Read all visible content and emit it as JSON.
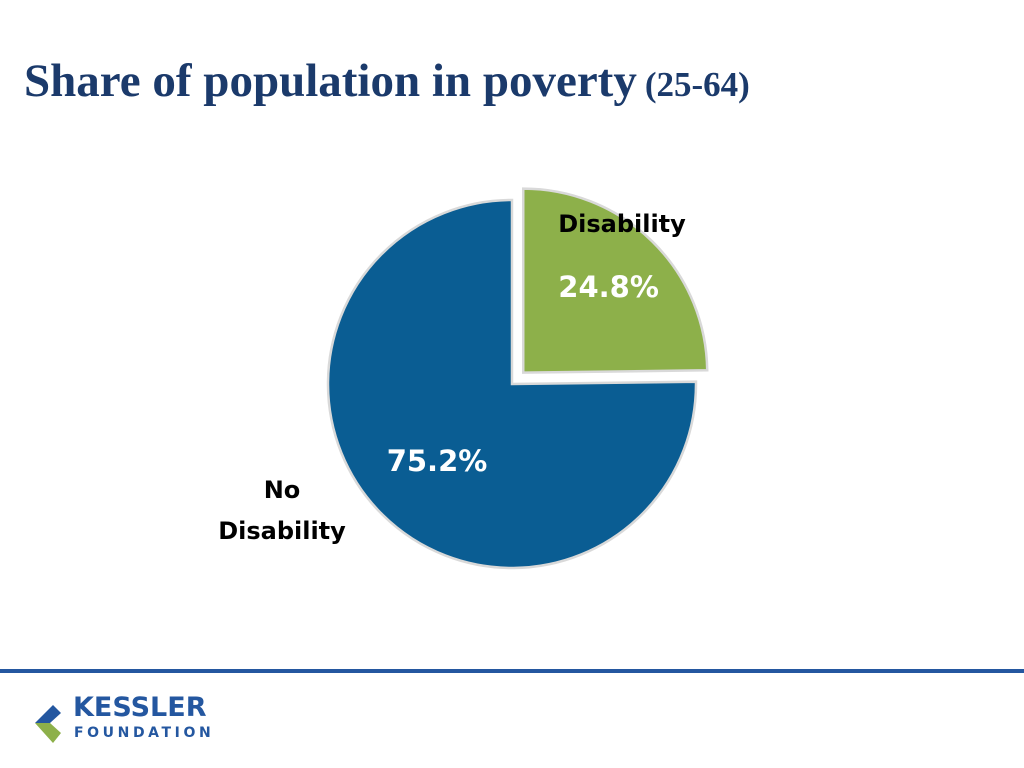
{
  "title": {
    "main": "Share of population in poverty",
    "sub": "(25-64)"
  },
  "chart_data": {
    "type": "pie",
    "title": "Share of population in poverty (25-64)",
    "slices": [
      {
        "label": "Disability",
        "value": 24.8,
        "value_label": "24.8%",
        "color": "#8db04a",
        "exploded": true
      },
      {
        "label_lines": [
          "No",
          "Disability"
        ],
        "value": 75.2,
        "value_label": "75.2%",
        "color": "#0a5d93",
        "exploded": false
      }
    ],
    "start_angle": "12 o'clock, clockwise",
    "legend": "none (direct labels)"
  },
  "logo": {
    "line1": "KESSLER",
    "line2": "FOUNDATION",
    "colors": {
      "blue": "#2457a0",
      "green": "#8db04a"
    }
  }
}
